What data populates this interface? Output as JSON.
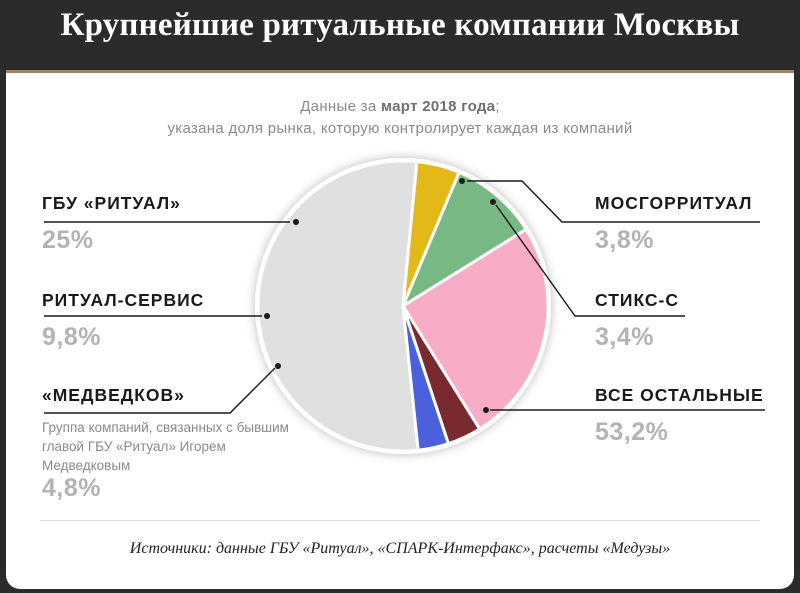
{
  "title": "Крупнейшие ритуальные компании Москвы",
  "subtitle": {
    "prefix": "Данные за ",
    "bold": "март 2018 года",
    "suffix": ";",
    "line2": "указана доля рынка, которую контролирует каждая из компаний"
  },
  "source": "Источники: данные ГБУ «Ритуал», «СПАРК-Интерфакс», расчеты «Медузы»",
  "chart_data": {
    "type": "pie",
    "title": "Крупнейшие ритуальные компании Москвы",
    "start_angle_deg": 84,
    "slices": [
      {
        "key": "vse",
        "name": "ВСЕ ОСТАЛЬНЫЕ",
        "value": 53.2,
        "value_label": "53,2%",
        "color": "#e0e0e0",
        "note": ""
      },
      {
        "key": "medvedkov",
        "name": "«МЕДВЕДКОВ»",
        "value": 4.8,
        "value_label": "4,8%",
        "color": "#e3b919",
        "note": "Группа компаний, связанных с бывшим главой ГБУ «Ритуал» Игорем Медведковым"
      },
      {
        "key": "servis",
        "name": "РИТУАЛ-СЕРВИС",
        "value": 9.8,
        "value_label": "9,8%",
        "color": "#78b884",
        "note": ""
      },
      {
        "key": "ritual",
        "name": "ГБУ «РИТУАЛ»",
        "value": 25,
        "value_label": "25%",
        "color": "#f8acc6",
        "note": ""
      },
      {
        "key": "mosgor",
        "name": "МОСГОРРИТУАЛ",
        "value": 3.8,
        "value_label": "3,8%",
        "color": "#7a2a2e",
        "note": ""
      },
      {
        "key": "stiks",
        "name": "СТИКС-С",
        "value": 3.4,
        "value_label": "3,4%",
        "color": "#4a60dc",
        "note": ""
      }
    ]
  }
}
